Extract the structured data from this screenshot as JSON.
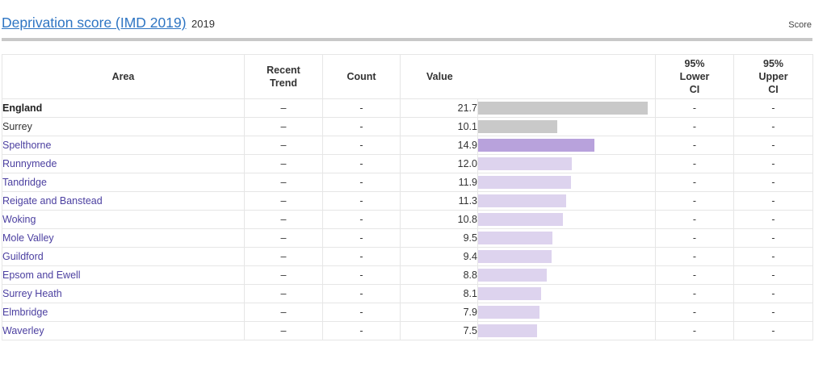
{
  "header": {
    "title": "Deprivation score (IMD 2019)",
    "year": "2019",
    "unit_label": "Score"
  },
  "table": {
    "columns": {
      "area": "Area",
      "trend_line1": "Recent",
      "trend_line2": "Trend",
      "count": "Count",
      "value": "Value",
      "lower_line1": "95%",
      "lower_line2": "Lower",
      "lower_line3": "CI",
      "upper_line1": "95%",
      "upper_line2": "Upper",
      "upper_line3": "CI"
    },
    "bar_max": 21.7,
    "colors": {
      "benchmark": "#c9c9c9",
      "selected": "#b8a2dc",
      "other": "#ddd3ee"
    },
    "rows": [
      {
        "area": "England",
        "style": "bold",
        "trend": "–",
        "count": "-",
        "value": "21.7",
        "lower": "-",
        "upper": "-",
        "bar": "benchmark"
      },
      {
        "area": "Surrey",
        "style": "plain",
        "trend": "–",
        "count": "-",
        "value": "10.1",
        "lower": "-",
        "upper": "-",
        "bar": "benchmark"
      },
      {
        "area": "Spelthorne",
        "style": "link",
        "trend": "–",
        "count": "-",
        "value": "14.9",
        "lower": "-",
        "upper": "-",
        "bar": "selected"
      },
      {
        "area": "Runnymede",
        "style": "link",
        "trend": "–",
        "count": "-",
        "value": "12.0",
        "lower": "-",
        "upper": "-",
        "bar": "other"
      },
      {
        "area": "Tandridge",
        "style": "link",
        "trend": "–",
        "count": "-",
        "value": "11.9",
        "lower": "-",
        "upper": "-",
        "bar": "other"
      },
      {
        "area": "Reigate and Banstead",
        "style": "link",
        "trend": "–",
        "count": "-",
        "value": "11.3",
        "lower": "-",
        "upper": "-",
        "bar": "other"
      },
      {
        "area": "Woking",
        "style": "link",
        "trend": "–",
        "count": "-",
        "value": "10.8",
        "lower": "-",
        "upper": "-",
        "bar": "other"
      },
      {
        "area": "Mole Valley",
        "style": "link",
        "trend": "–",
        "count": "-",
        "value": "9.5",
        "lower": "-",
        "upper": "-",
        "bar": "other"
      },
      {
        "area": "Guildford",
        "style": "link",
        "trend": "–",
        "count": "-",
        "value": "9.4",
        "lower": "-",
        "upper": "-",
        "bar": "other"
      },
      {
        "area": "Epsom and Ewell",
        "style": "link",
        "trend": "–",
        "count": "-",
        "value": "8.8",
        "lower": "-",
        "upper": "-",
        "bar": "other"
      },
      {
        "area": "Surrey Heath",
        "style": "link",
        "trend": "–",
        "count": "-",
        "value": "8.1",
        "lower": "-",
        "upper": "-",
        "bar": "other"
      },
      {
        "area": "Elmbridge",
        "style": "link",
        "trend": "–",
        "count": "-",
        "value": "7.9",
        "lower": "-",
        "upper": "-",
        "bar": "other"
      },
      {
        "area": "Waverley",
        "style": "link",
        "trend": "–",
        "count": "-",
        "value": "7.5",
        "lower": "-",
        "upper": "-",
        "bar": "other"
      }
    ]
  }
}
